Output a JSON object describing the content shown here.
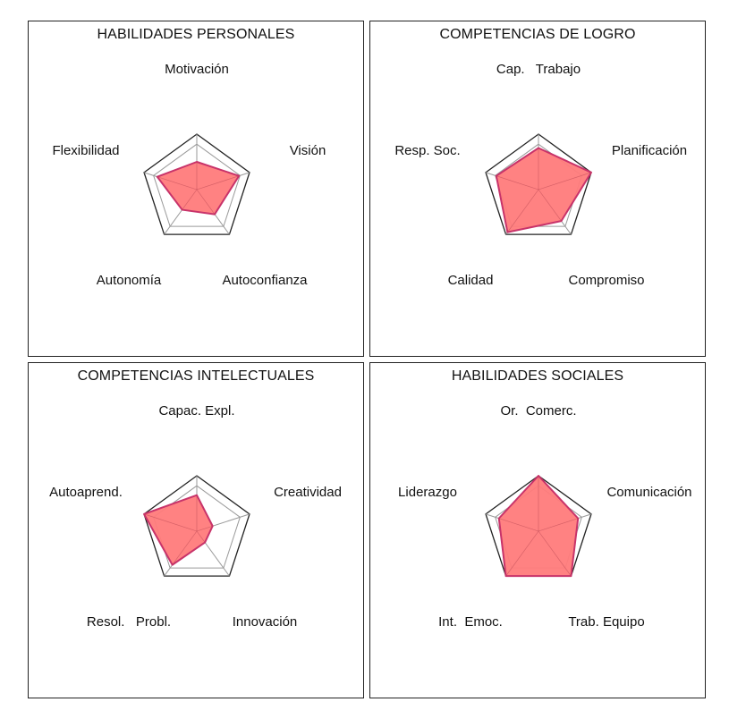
{
  "chart_data": [
    {
      "type": "radar",
      "title": "HABILIDADES PERSONALES",
      "categories": [
        "Motivación",
        "Visión",
        "Autoconfianza",
        "Autonomía",
        "Flexibilidad"
      ],
      "values": [
        0.5,
        0.8,
        0.55,
        0.45,
        0.75
      ],
      "range": [
        0,
        1
      ],
      "colors": {
        "fill": "#ff7b7b",
        "stroke": "#c8336a"
      }
    },
    {
      "type": "radar",
      "title": "COMPETENCIAS DE LOGRO",
      "categories": [
        "Cap.   Trabajo",
        "Planificación",
        "Compromiso",
        "Calidad",
        "Resp. Soc."
      ],
      "values": [
        0.75,
        1.0,
        0.7,
        0.95,
        0.8
      ],
      "range": [
        0,
        1
      ],
      "colors": {
        "fill": "#ff7b7b",
        "stroke": "#c8336a"
      }
    },
    {
      "type": "radar",
      "title": "COMPETENCIAS INTELECTUALES",
      "categories": [
        "Capac. Expl.",
        "Creatividad",
        "Innovación",
        "Resol.   Probl.",
        "Autoaprend."
      ],
      "values": [
        0.65,
        0.3,
        0.25,
        0.75,
        1.0
      ],
      "range": [
        0,
        1
      ],
      "colors": {
        "fill": "#ff7b7b",
        "stroke": "#c8336a"
      }
    },
    {
      "type": "radar",
      "title": "HABILIDADES SOCIALES",
      "categories": [
        "Or.  Comerc.",
        "Comunicación",
        "Trab. Equipo",
        "Int.  Emoc.",
        "Liderazgo"
      ],
      "values": [
        1.0,
        0.75,
        1.0,
        1.0,
        0.75
      ],
      "range": [
        0,
        1
      ],
      "colors": {
        "fill": "#ff7b7b",
        "stroke": "#c8336a"
      }
    }
  ]
}
